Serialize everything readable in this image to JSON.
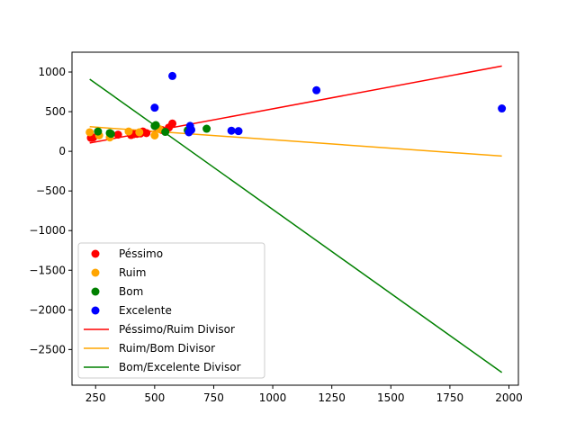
{
  "chart_data": {
    "type": "scatter",
    "title": "",
    "xlabel": "",
    "ylabel": "",
    "xlim": [
      150,
      2040
    ],
    "ylim": [
      -2950,
      1250
    ],
    "grid": false,
    "legend_position": "lower-left",
    "x_ticks": [
      250,
      500,
      750,
      1000,
      1250,
      1500,
      1750,
      2000
    ],
    "y_ticks": [
      1000,
      500,
      0,
      -500,
      -1000,
      -1500,
      -2000,
      -2500
    ],
    "x_tick_labels": [
      "250",
      "500",
      "750",
      "1000",
      "1250",
      "1500",
      "1750",
      "2000"
    ],
    "y_tick_labels": [
      "1000",
      "500",
      "0",
      "−500",
      "−1000",
      "−1500",
      "−2000",
      "−2500"
    ],
    "series": [
      {
        "name": "Péssimo",
        "color": "#ff0000",
        "points": [
          [
            230,
            170
          ],
          [
            240,
            175
          ],
          [
            345,
            210
          ],
          [
            400,
            205
          ],
          [
            410,
            215
          ],
          [
            425,
            220
          ],
          [
            440,
            225
          ],
          [
            450,
            250
          ],
          [
            465,
            230
          ],
          [
            530,
            270
          ],
          [
            560,
            300
          ],
          [
            575,
            350
          ]
        ]
      },
      {
        "name": "Ruim",
        "color": "#ffa500",
        "points": [
          [
            225,
            240
          ],
          [
            265,
            200
          ],
          [
            310,
            175
          ],
          [
            390,
            250
          ],
          [
            435,
            240
          ],
          [
            500,
            200
          ],
          [
            520,
            280
          ]
        ]
      },
      {
        "name": "Bom",
        "color": "#008000",
        "points": [
          [
            260,
            250
          ],
          [
            310,
            230
          ],
          [
            315,
            220
          ],
          [
            500,
            320
          ],
          [
            505,
            330
          ],
          [
            545,
            245
          ],
          [
            640,
            265
          ],
          [
            720,
            285
          ]
        ]
      },
      {
        "name": "Excelente",
        "color": "#0000ff",
        "points": [
          [
            500,
            550
          ],
          [
            575,
            950
          ],
          [
            645,
            240
          ],
          [
            650,
            320
          ],
          [
            655,
            270
          ],
          [
            825,
            260
          ],
          [
            855,
            255
          ],
          [
            1185,
            770
          ],
          [
            1970,
            540
          ]
        ]
      }
    ],
    "lines": [
      {
        "name": "Péssimo/Ruim Divisor",
        "color": "#ff0000",
        "x": [
          225,
          1970
        ],
        "y": [
          105,
          1075
        ]
      },
      {
        "name": "Ruim/Bom Divisor",
        "color": "#ffa500",
        "x": [
          225,
          1970
        ],
        "y": [
          310,
          -60
        ]
      },
      {
        "name": "Bom/Excelente Divisor",
        "color": "#008000",
        "x": [
          225,
          1970
        ],
        "y": [
          910,
          -2790
        ]
      }
    ]
  }
}
